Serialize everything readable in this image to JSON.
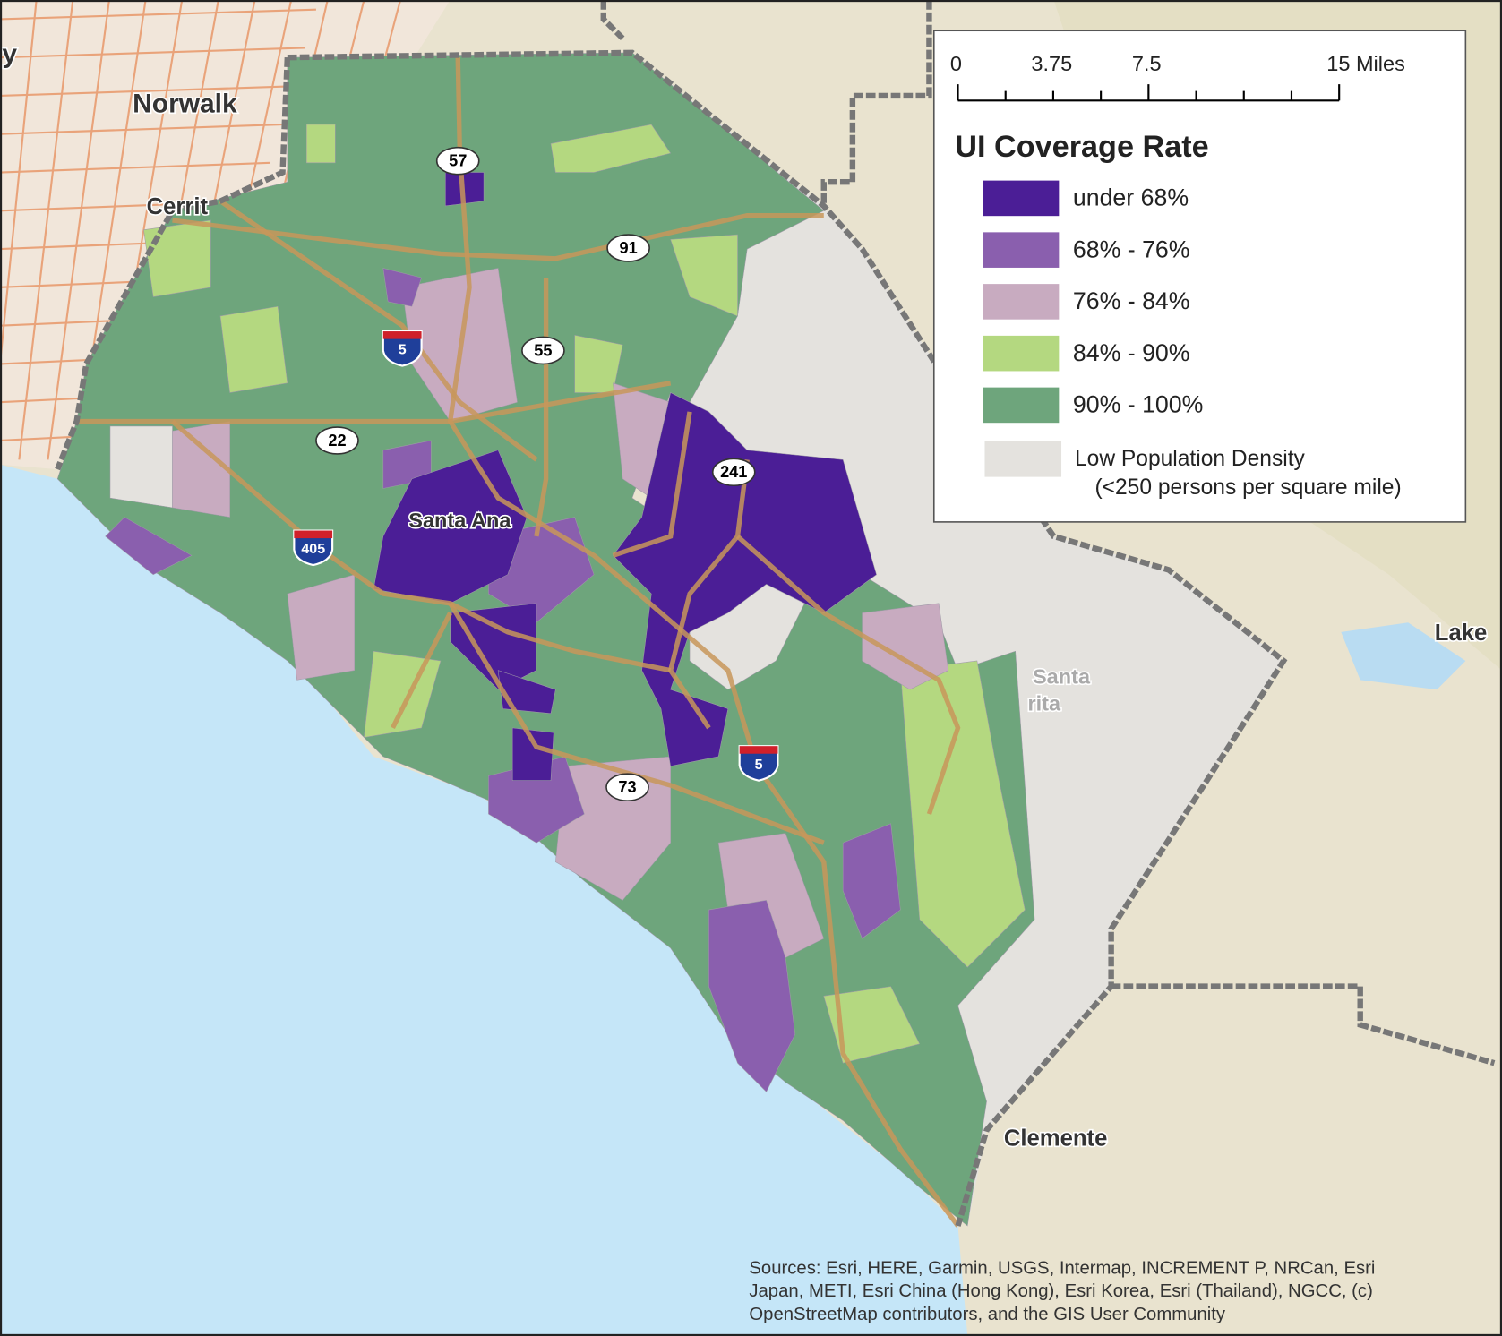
{
  "legend": {
    "title": "UI Coverage Rate",
    "classes": [
      {
        "label": "under 68%",
        "color": "#4b1e96"
      },
      {
        "label": "68% - 76%",
        "color": "#8a5fae"
      },
      {
        "label": "76% - 84%",
        "color": "#c8abc0"
      },
      {
        "label": "84% - 90%",
        "color": "#b4d880"
      },
      {
        "label": "90% - 100%",
        "color": "#6ea57c"
      }
    ],
    "other": {
      "label": "Low Population Density",
      "note": "(<250 persons per square mile)",
      "color": "#e4e2de"
    }
  },
  "scale_bar": {
    "labels": [
      "0",
      "3.75",
      "7.5",
      "15 Miles"
    ]
  },
  "places": [
    "Norwalk",
    "Cerrit",
    "y",
    "Santa Ana",
    "Santa",
    "rita",
    "Lake",
    "Clemente"
  ],
  "routes": [
    "57",
    "91",
    "55",
    "22",
    "241",
    "73"
  ],
  "interstates": [
    "5",
    "405",
    "5"
  ],
  "sources": [
    "Sources: Esri, HERE, Garmin, USGS, Intermap, INCREMENT P, NRCan, Esri",
    "Japan, METI, Esri China (Hong Kong), Esri Korea, Esri (Thailand), NGCC, (c)",
    "OpenStreetMap contributors, and the GIS User Community"
  ]
}
